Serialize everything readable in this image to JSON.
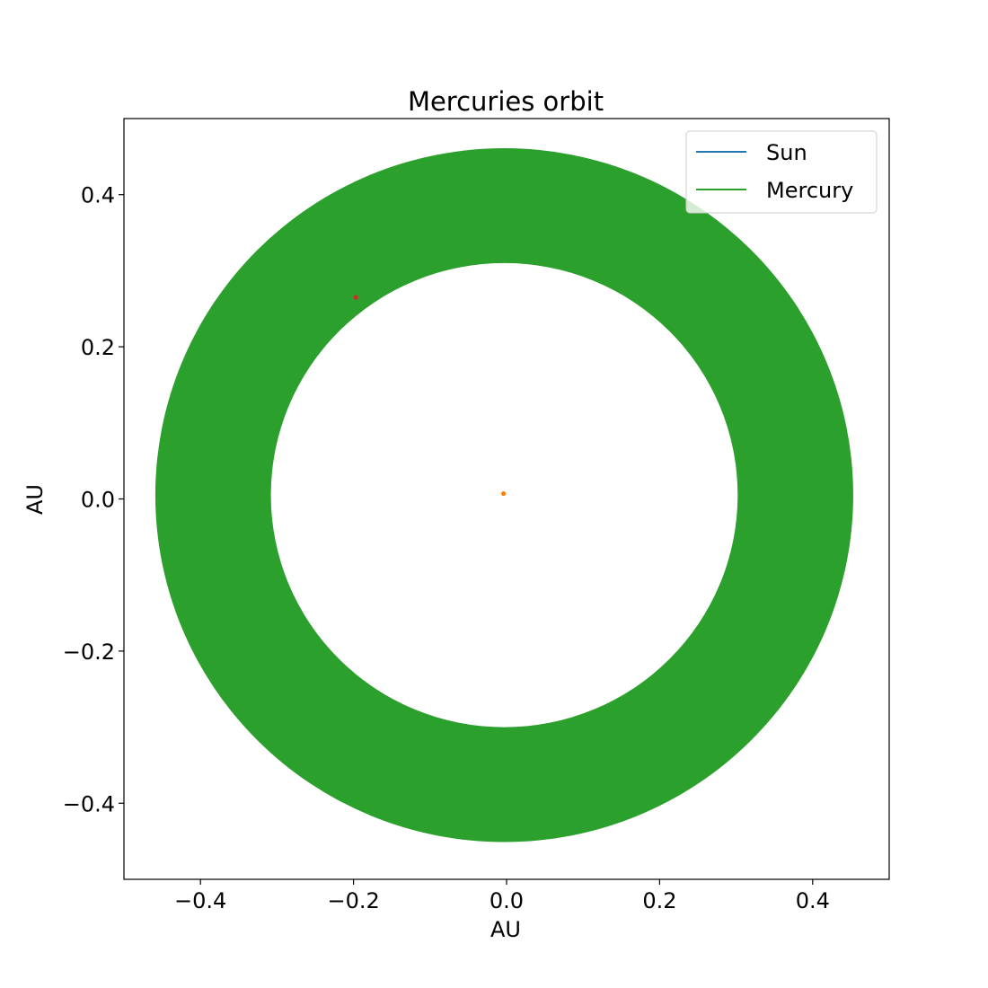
{
  "chart_data": {
    "type": "line",
    "title": "Mercuries orbit",
    "xlabel": "AU",
    "ylabel": "AU",
    "xlim": [
      -0.5,
      0.5
    ],
    "ylim": [
      -0.5,
      0.5
    ],
    "xticks": [
      -0.4,
      -0.2,
      0.0,
      0.2,
      0.4
    ],
    "yticks": [
      -0.4,
      -0.2,
      0.0,
      0.2,
      0.4
    ],
    "xtick_labels": [
      "−0.4",
      "−0.2",
      "0.0",
      "0.2",
      "0.4"
    ],
    "ytick_labels": [
      "−0.4",
      "−0.2",
      "0.0",
      "0.2",
      "0.4"
    ],
    "grid": false,
    "legend_position": "top-right",
    "series": [
      {
        "name": "Sun",
        "color": "#1f77b4",
        "marker": "line",
        "center": [
          0.0,
          0.0
        ]
      },
      {
        "name": "Mercury",
        "color": "#2ca02c",
        "marker": "line",
        "orbit_band": {
          "center": [
            -0.003,
            0.005
          ],
          "outer_radius": 0.456,
          "inner_radius": 0.305
        }
      }
    ],
    "points": [
      {
        "color": "#ff7f0e",
        "x": -0.004,
        "y": 0.007
      },
      {
        "color": "#d62728",
        "x": -0.197,
        "y": 0.265
      }
    ]
  }
}
